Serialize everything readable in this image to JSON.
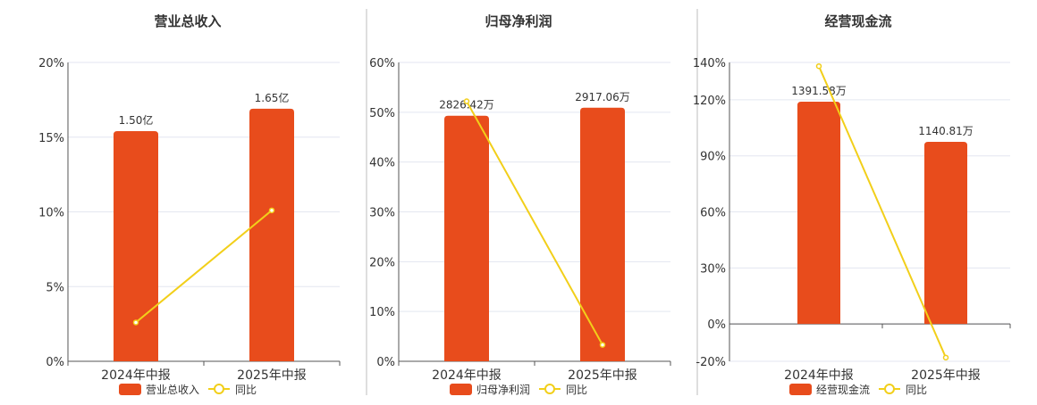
{
  "colors": {
    "bar": "#e84c1c",
    "line": "#f2cf1a",
    "grid": "#e3e6f0",
    "axis": "#555555",
    "text": "#333333",
    "divider": "#bdbdbd"
  },
  "chart_data": [
    {
      "type": "bar",
      "title": "营业总收入",
      "categories": [
        "2024年中报",
        "2025年中报"
      ],
      "series": [
        {
          "name": "营业总收入",
          "type": "bar",
          "values": [
            15.4,
            16.9
          ],
          "labels": [
            "1.50亿",
            "1.65亿"
          ]
        },
        {
          "name": "同比",
          "type": "line",
          "values": [
            2.6,
            10.1
          ]
        }
      ],
      "yticks": [
        "0%",
        "5%",
        "10%",
        "15%",
        "20%"
      ],
      "ylim": [
        0,
        20
      ],
      "grid": true,
      "legend": "bottom"
    },
    {
      "type": "bar",
      "title": "归母净利润",
      "categories": [
        "2024年中报",
        "2025年中报"
      ],
      "series": [
        {
          "name": "归母净利润",
          "type": "bar",
          "values": [
            49.3,
            50.9
          ],
          "labels": [
            "2826.42万",
            "2917.06万"
          ]
        },
        {
          "name": "同比",
          "type": "line",
          "values": [
            52.2,
            3.3
          ]
        }
      ],
      "yticks": [
        "0%",
        "10%",
        "20%",
        "30%",
        "40%",
        "50%",
        "60%"
      ],
      "ylim": [
        0,
        60
      ],
      "grid": true,
      "legend": "bottom"
    },
    {
      "type": "bar",
      "title": "经营现金流",
      "categories": [
        "2024年中报",
        "2025年中报"
      ],
      "series": [
        {
          "name": "经营现金流",
          "type": "bar",
          "values": [
            119,
            97.5
          ],
          "labels": [
            "1391.58万",
            "1140.81万"
          ]
        },
        {
          "name": "同比",
          "type": "line",
          "values": [
            138,
            -18
          ]
        }
      ],
      "yticks": [
        "-20%",
        "0%",
        "30%",
        "60%",
        "90%",
        "120%",
        "140%"
      ],
      "ytick_values": [
        -20,
        0,
        30,
        60,
        90,
        120,
        140
      ],
      "ylim": [
        -20,
        140
      ],
      "grid": true,
      "legend": "bottom"
    }
  ]
}
